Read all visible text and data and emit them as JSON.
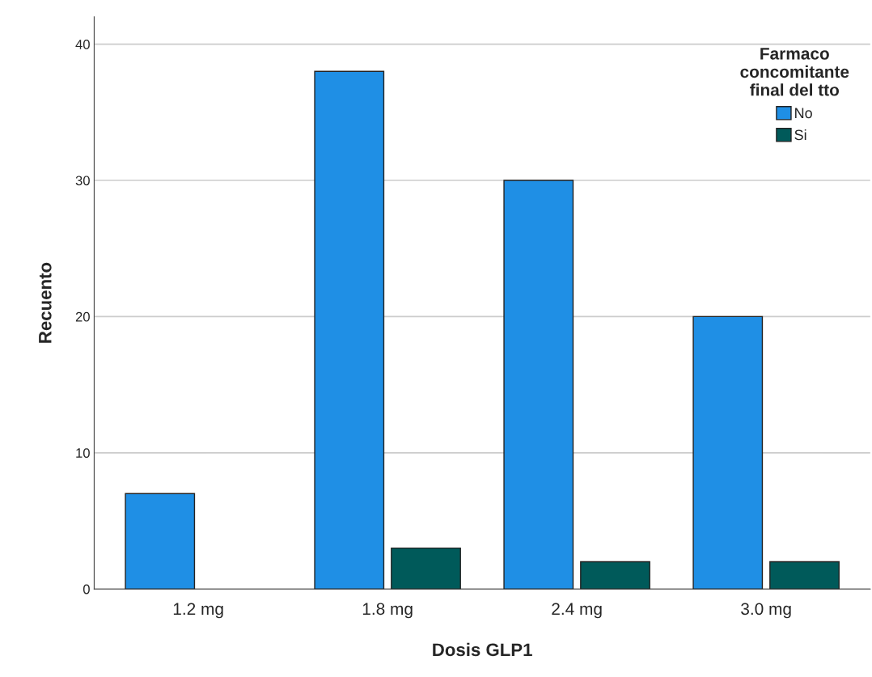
{
  "chart_data": {
    "type": "bar",
    "xlabel": "Dosis GLP1",
    "ylabel": "Recuento",
    "legend_title": "Farmaco\nconcomitante\nfinal del tto",
    "categories": [
      "1.2 mg",
      "1.8 mg",
      "2.4 mg",
      "3.0 mg"
    ],
    "series": [
      {
        "name": "No",
        "color": "#1f8fe5",
        "values": [
          7,
          38,
          30,
          20
        ]
      },
      {
        "name": "Si",
        "color": "#005a5a",
        "values": [
          null,
          3,
          2,
          2
        ]
      }
    ],
    "ylim": [
      0,
      42
    ],
    "yticks": [
      0,
      10,
      20,
      30,
      40
    ],
    "grid": "y",
    "legend": "top right"
  }
}
